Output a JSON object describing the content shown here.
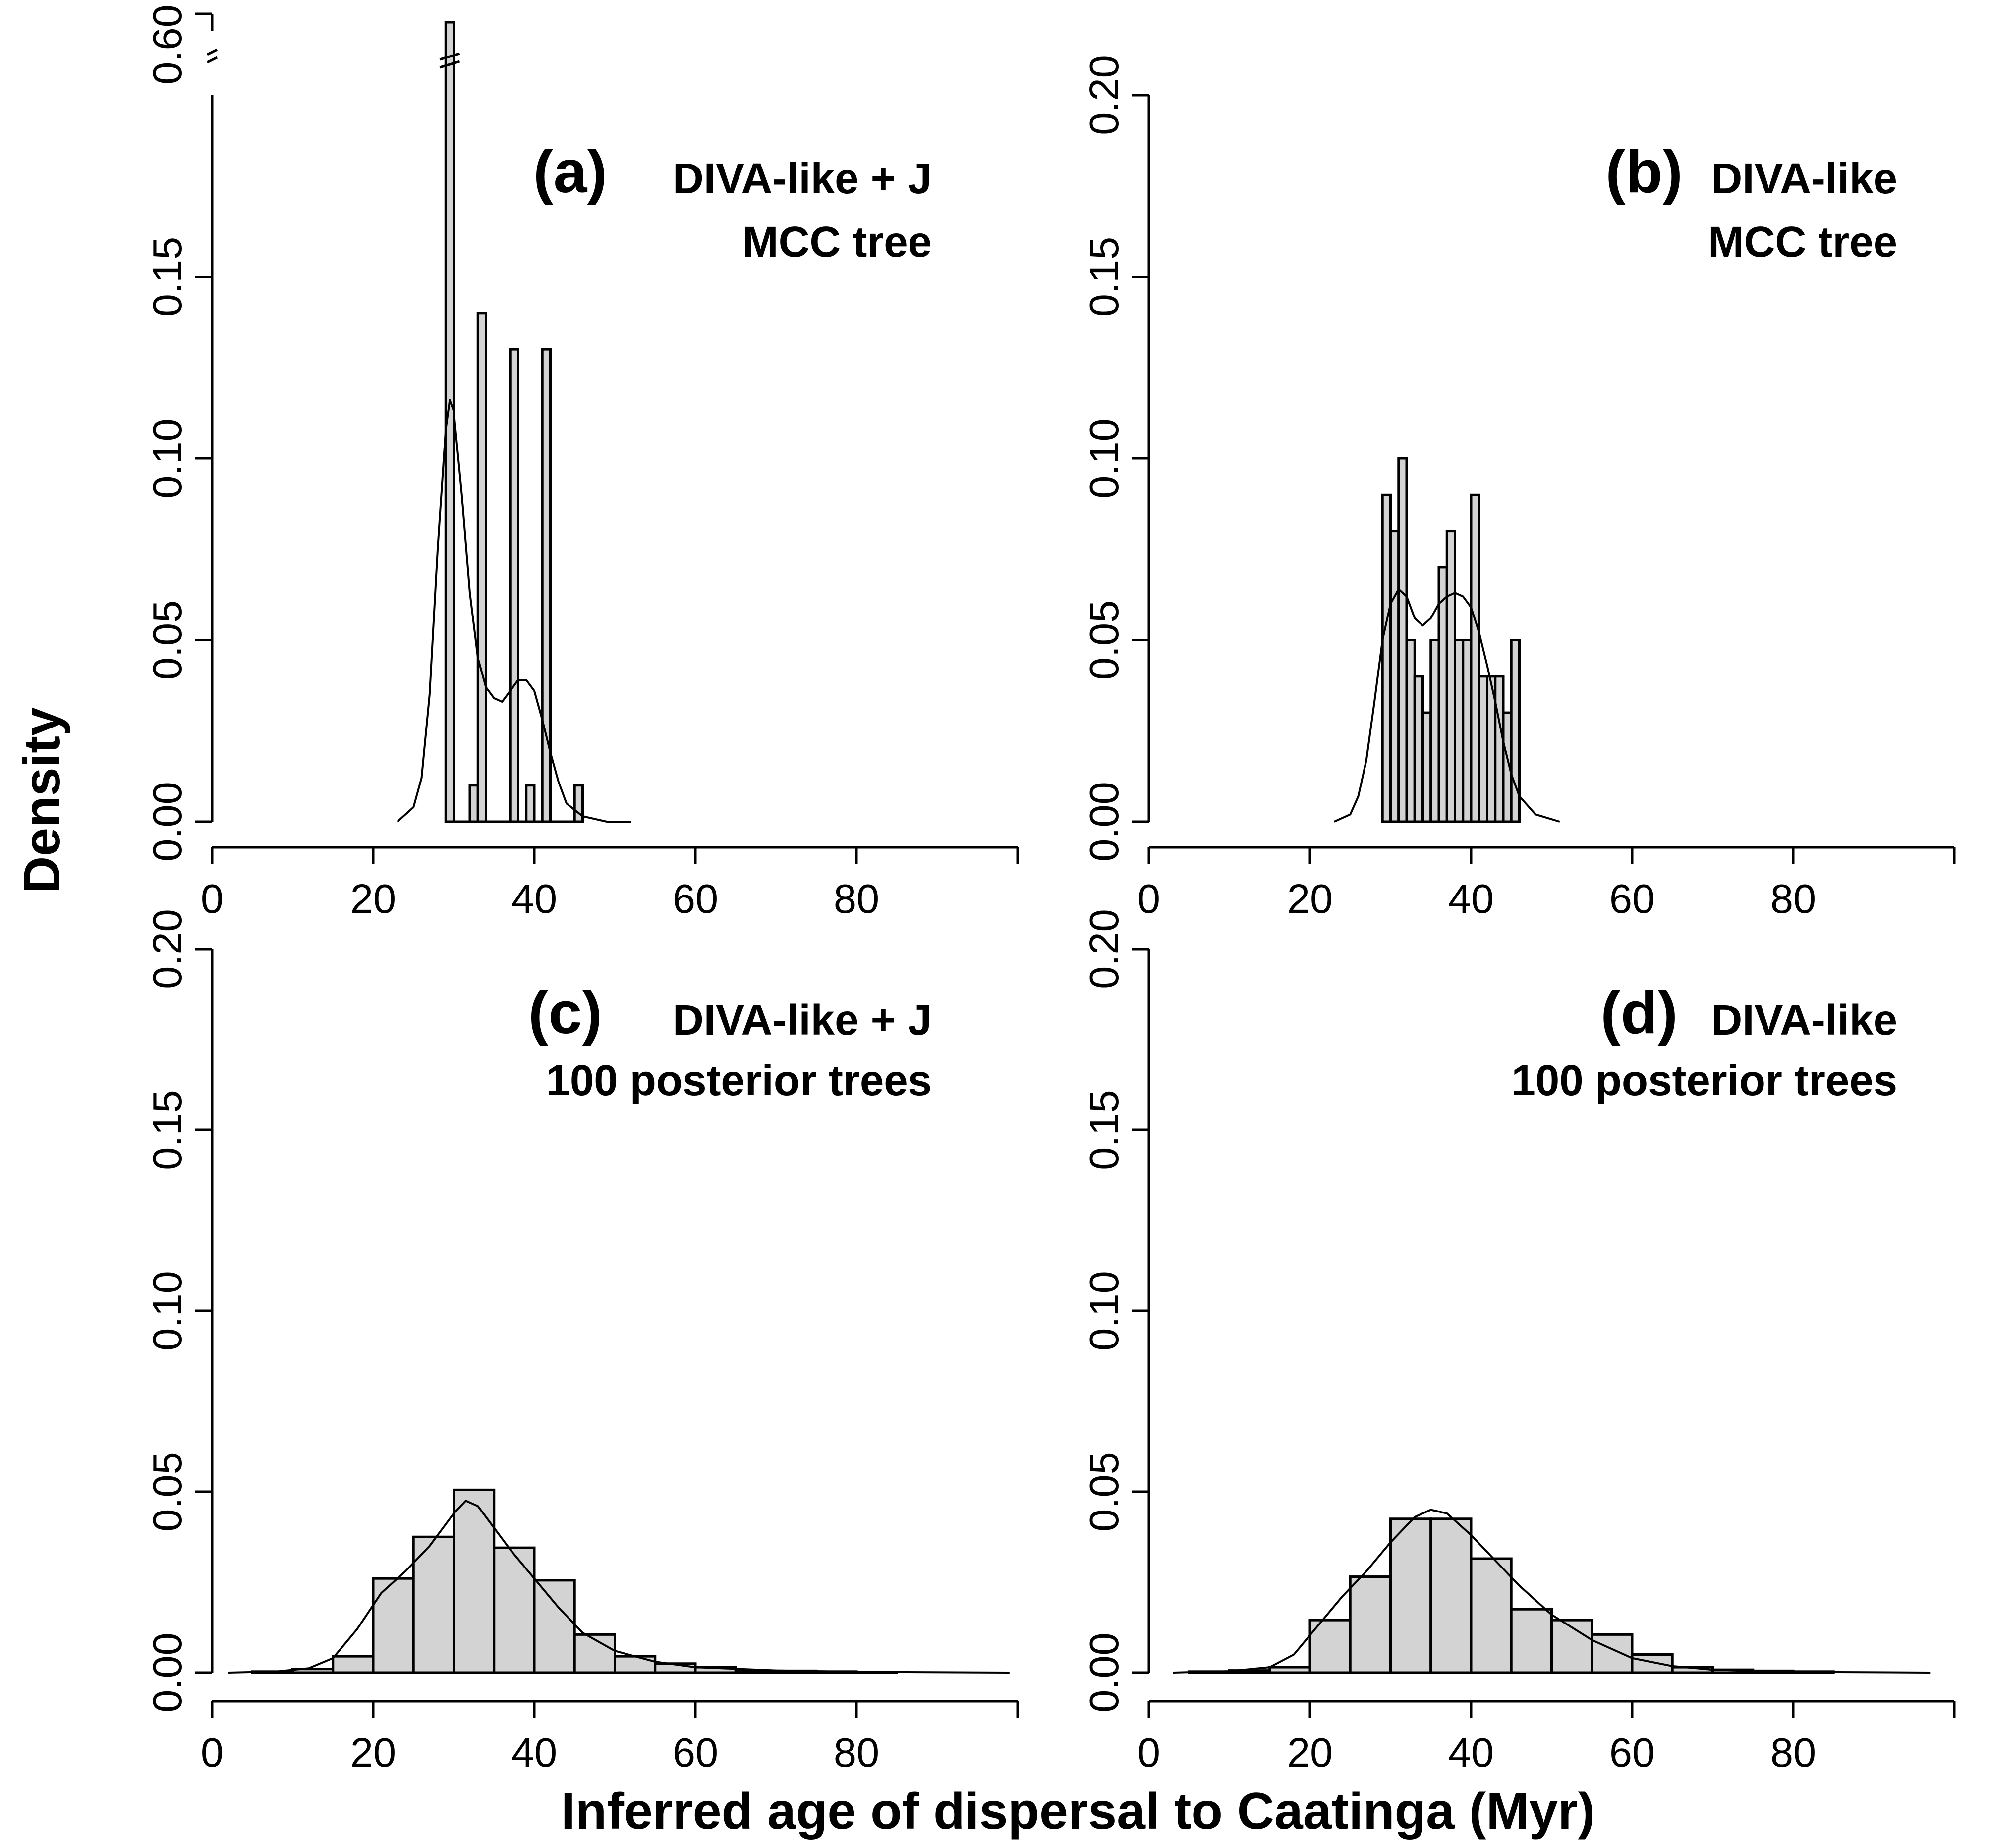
{
  "figure": {
    "ylabel": "Density",
    "xlabel": "Inferred age of dispersal to Caatinga (Myr)"
  },
  "chart_data": [
    {
      "panel": "a",
      "type": "bar",
      "tag": "(a)",
      "title_lines": [
        "DIVA-like + J",
        "MCC tree"
      ],
      "xlim": [
        0,
        100
      ],
      "xticks": [
        "0",
        "20",
        "40",
        "60",
        "80"
      ],
      "ylim": [
        0,
        0.2
      ],
      "yticks": [
        "0.00",
        "0.05",
        "0.10",
        "0.15"
      ],
      "axis_break": {
        "label": "0.60",
        "bar_value": 0.6
      },
      "bins": [
        {
          "x0": 29,
          "x1": 30,
          "value": 0.6,
          "broken": true
        },
        {
          "x0": 32,
          "x1": 33,
          "value": 0.01
        },
        {
          "x0": 33,
          "x1": 34,
          "value": 0.14
        },
        {
          "x0": 37,
          "x1": 38,
          "value": 0.13
        },
        {
          "x0": 39,
          "x1": 40,
          "value": 0.01
        },
        {
          "x0": 41,
          "x1": 42,
          "value": 0.13
        },
        {
          "x0": 45,
          "x1": 46,
          "value": 0.01
        }
      ],
      "baseline": [
        29,
        46
      ],
      "density_curve": [
        {
          "x": 23,
          "y": 0.0
        },
        {
          "x": 25,
          "y": 0.004
        },
        {
          "x": 26,
          "y": 0.012
        },
        {
          "x": 27,
          "y": 0.035
        },
        {
          "x": 28,
          "y": 0.075
        },
        {
          "x": 29,
          "y": 0.108
        },
        {
          "x": 29.5,
          "y": 0.116
        },
        {
          "x": 30,
          "y": 0.113
        },
        {
          "x": 31,
          "y": 0.09
        },
        {
          "x": 32,
          "y": 0.063
        },
        {
          "x": 33,
          "y": 0.045
        },
        {
          "x": 34,
          "y": 0.037
        },
        {
          "x": 35,
          "y": 0.034
        },
        {
          "x": 36,
          "y": 0.033
        },
        {
          "x": 37,
          "y": 0.036
        },
        {
          "x": 38,
          "y": 0.039
        },
        {
          "x": 39,
          "y": 0.039
        },
        {
          "x": 40,
          "y": 0.036
        },
        {
          "x": 41,
          "y": 0.028
        },
        {
          "x": 42,
          "y": 0.019
        },
        {
          "x": 43,
          "y": 0.011
        },
        {
          "x": 44,
          "y": 0.005
        },
        {
          "x": 46,
          "y": 0.0015
        },
        {
          "x": 49,
          "y": 0.0
        },
        {
          "x": 52,
          "y": 0.0
        }
      ]
    },
    {
      "panel": "b",
      "type": "bar",
      "tag": "(b)",
      "title_lines": [
        "DIVA-like",
        "MCC tree"
      ],
      "xlim": [
        0,
        100
      ],
      "xticks": [
        "0",
        "20",
        "40",
        "60",
        "80"
      ],
      "ylim": [
        0,
        0.2
      ],
      "yticks": [
        "0.00",
        "0.05",
        "0.10",
        "0.15",
        "0.20"
      ],
      "bins": [
        {
          "x0": 29,
          "x1": 30,
          "value": 0.09
        },
        {
          "x0": 30,
          "x1": 31,
          "value": 0.08
        },
        {
          "x0": 31,
          "x1": 32,
          "value": 0.1
        },
        {
          "x0": 32,
          "x1": 33,
          "value": 0.05
        },
        {
          "x0": 33,
          "x1": 34,
          "value": 0.04
        },
        {
          "x0": 34,
          "x1": 35,
          "value": 0.03
        },
        {
          "x0": 35,
          "x1": 36,
          "value": 0.05
        },
        {
          "x0": 36,
          "x1": 37,
          "value": 0.07
        },
        {
          "x0": 37,
          "x1": 38,
          "value": 0.08
        },
        {
          "x0": 38,
          "x1": 39,
          "value": 0.05
        },
        {
          "x0": 39,
          "x1": 40,
          "value": 0.05
        },
        {
          "x0": 40,
          "x1": 41,
          "value": 0.09
        },
        {
          "x0": 41,
          "x1": 42,
          "value": 0.04
        },
        {
          "x0": 42,
          "x1": 43,
          "value": 0.04
        },
        {
          "x0": 43,
          "x1": 44,
          "value": 0.04
        },
        {
          "x0": 44,
          "x1": 45,
          "value": 0.03
        },
        {
          "x0": 45,
          "x1": 46,
          "value": 0.05
        }
      ],
      "density_curve": [
        {
          "x": 23,
          "y": 0.0
        },
        {
          "x": 25,
          "y": 0.002
        },
        {
          "x": 26,
          "y": 0.007
        },
        {
          "x": 27,
          "y": 0.017
        },
        {
          "x": 28,
          "y": 0.033
        },
        {
          "x": 29,
          "y": 0.05
        },
        {
          "x": 30,
          "y": 0.06
        },
        {
          "x": 31,
          "y": 0.064
        },
        {
          "x": 32,
          "y": 0.062
        },
        {
          "x": 33,
          "y": 0.056
        },
        {
          "x": 34,
          "y": 0.054
        },
        {
          "x": 35,
          "y": 0.056
        },
        {
          "x": 36,
          "y": 0.06
        },
        {
          "x": 37,
          "y": 0.062
        },
        {
          "x": 38,
          "y": 0.063
        },
        {
          "x": 39,
          "y": 0.062
        },
        {
          "x": 40,
          "y": 0.059
        },
        {
          "x": 41,
          "y": 0.052
        },
        {
          "x": 42,
          "y": 0.043
        },
        {
          "x": 43,
          "y": 0.033
        },
        {
          "x": 44,
          "y": 0.022
        },
        {
          "x": 45,
          "y": 0.013
        },
        {
          "x": 46,
          "y": 0.007
        },
        {
          "x": 48,
          "y": 0.002
        },
        {
          "x": 51,
          "y": 0.0
        }
      ]
    },
    {
      "panel": "c",
      "type": "bar",
      "tag": "(c)",
      "title_lines": [
        "DIVA-like + J",
        "100 posterior trees"
      ],
      "xlim": [
        0,
        100
      ],
      "xticks": [
        "0",
        "20",
        "40",
        "60",
        "80"
      ],
      "ylim": [
        0,
        0.2
      ],
      "yticks": [
        "0.00",
        "0.05",
        "0.10",
        "0.15",
        "0.20"
      ],
      "bins": [
        {
          "x0": 5,
          "x1": 10,
          "value": 0.0003
        },
        {
          "x0": 10,
          "x1": 15,
          "value": 0.001
        },
        {
          "x0": 15,
          "x1": 20,
          "value": 0.0045
        },
        {
          "x0": 20,
          "x1": 25,
          "value": 0.026
        },
        {
          "x0": 25,
          "x1": 30,
          "value": 0.0375
        },
        {
          "x0": 30,
          "x1": 35,
          "value": 0.0505
        },
        {
          "x0": 35,
          "x1": 40,
          "value": 0.0345
        },
        {
          "x0": 40,
          "x1": 45,
          "value": 0.0255
        },
        {
          "x0": 45,
          "x1": 50,
          "value": 0.0105
        },
        {
          "x0": 50,
          "x1": 55,
          "value": 0.0045
        },
        {
          "x0": 55,
          "x1": 60,
          "value": 0.0025
        },
        {
          "x0": 60,
          "x1": 65,
          "value": 0.0015
        },
        {
          "x0": 65,
          "x1": 70,
          "value": 0.0005
        },
        {
          "x0": 70,
          "x1": 75,
          "value": 0.0005
        },
        {
          "x0": 75,
          "x1": 80,
          "value": 0.0003
        },
        {
          "x0": 80,
          "x1": 85,
          "value": 0.0002
        }
      ],
      "density_curve": [
        {
          "x": 2,
          "y": 0.0
        },
        {
          "x": 8,
          "y": 0.0003
        },
        {
          "x": 12,
          "y": 0.0012
        },
        {
          "x": 15,
          "y": 0.004
        },
        {
          "x": 18,
          "y": 0.012
        },
        {
          "x": 21,
          "y": 0.022
        },
        {
          "x": 24,
          "y": 0.028
        },
        {
          "x": 27,
          "y": 0.035
        },
        {
          "x": 30,
          "y": 0.044
        },
        {
          "x": 31.5,
          "y": 0.0475
        },
        {
          "x": 33,
          "y": 0.046
        },
        {
          "x": 35,
          "y": 0.04
        },
        {
          "x": 37,
          "y": 0.034
        },
        {
          "x": 40,
          "y": 0.026
        },
        {
          "x": 43,
          "y": 0.018
        },
        {
          "x": 46,
          "y": 0.011
        },
        {
          "x": 50,
          "y": 0.006
        },
        {
          "x": 55,
          "y": 0.003
        },
        {
          "x": 60,
          "y": 0.0015
        },
        {
          "x": 70,
          "y": 0.0006
        },
        {
          "x": 80,
          "y": 0.0002
        },
        {
          "x": 99,
          "y": 0.0
        }
      ]
    },
    {
      "panel": "d",
      "type": "bar",
      "tag": "(d)",
      "title_lines": [
        "DIVA-like",
        "100 posterior trees"
      ],
      "xlim": [
        0,
        100
      ],
      "xticks": [
        "0",
        "20",
        "40",
        "60",
        "80"
      ],
      "ylim": [
        0,
        0.2
      ],
      "yticks": [
        "0.00",
        "0.05",
        "0.10",
        "0.15",
        "0.20"
      ],
      "bins": [
        {
          "x0": 5,
          "x1": 10,
          "value": 0.0003
        },
        {
          "x0": 10,
          "x1": 15,
          "value": 0.0006
        },
        {
          "x0": 15,
          "x1": 20,
          "value": 0.0015
        },
        {
          "x0": 20,
          "x1": 25,
          "value": 0.0145
        },
        {
          "x0": 25,
          "x1": 30,
          "value": 0.0265
        },
        {
          "x0": 30,
          "x1": 35,
          "value": 0.0425
        },
        {
          "x0": 35,
          "x1": 40,
          "value": 0.0425
        },
        {
          "x0": 40,
          "x1": 45,
          "value": 0.0315
        },
        {
          "x0": 45,
          "x1": 50,
          "value": 0.0175
        },
        {
          "x0": 50,
          "x1": 55,
          "value": 0.0145
        },
        {
          "x0": 55,
          "x1": 60,
          "value": 0.0105
        },
        {
          "x0": 60,
          "x1": 65,
          "value": 0.005
        },
        {
          "x0": 65,
          "x1": 70,
          "value": 0.0015
        },
        {
          "x0": 70,
          "x1": 75,
          "value": 0.0008
        },
        {
          "x0": 75,
          "x1": 80,
          "value": 0.0005
        },
        {
          "x0": 80,
          "x1": 85,
          "value": 0.0003
        }
      ],
      "density_curve": [
        {
          "x": 3,
          "y": 0.0
        },
        {
          "x": 10,
          "y": 0.0004
        },
        {
          "x": 15,
          "y": 0.0015
        },
        {
          "x": 18,
          "y": 0.005
        },
        {
          "x": 21,
          "y": 0.013
        },
        {
          "x": 24,
          "y": 0.021
        },
        {
          "x": 27,
          "y": 0.028
        },
        {
          "x": 30,
          "y": 0.036
        },
        {
          "x": 33,
          "y": 0.043
        },
        {
          "x": 35,
          "y": 0.045
        },
        {
          "x": 37,
          "y": 0.044
        },
        {
          "x": 40,
          "y": 0.038
        },
        {
          "x": 43,
          "y": 0.031
        },
        {
          "x": 46,
          "y": 0.024
        },
        {
          "x": 50,
          "y": 0.016
        },
        {
          "x": 55,
          "y": 0.009
        },
        {
          "x": 60,
          "y": 0.004
        },
        {
          "x": 65,
          "y": 0.0018
        },
        {
          "x": 70,
          "y": 0.0008
        },
        {
          "x": 80,
          "y": 0.0002
        },
        {
          "x": 97,
          "y": 0.0
        }
      ]
    }
  ]
}
